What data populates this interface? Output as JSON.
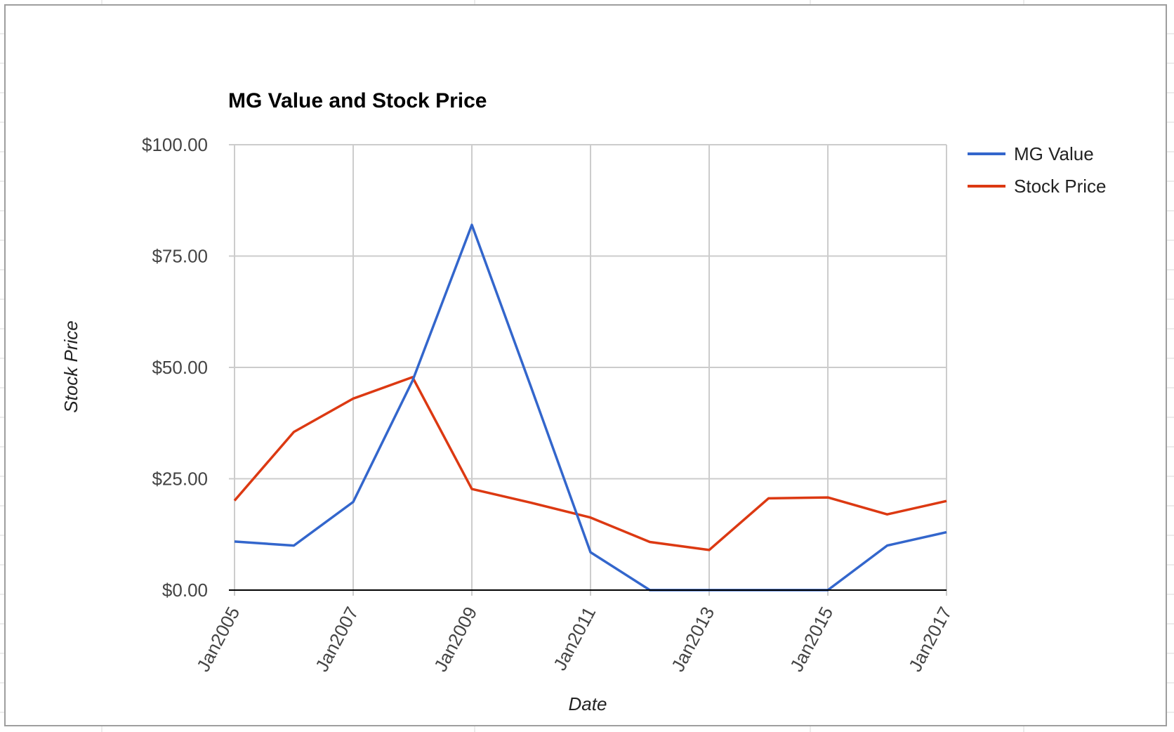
{
  "chart_data": {
    "type": "line",
    "title": "MG Value and Stock Price",
    "xlabel": "Date",
    "ylabel": "Stock Price",
    "x": [
      "2005-01",
      "2006-01",
      "2007-01",
      "2008-01",
      "2009-01",
      "2010-01",
      "2011-01",
      "2012-01",
      "2013-01",
      "2014-01",
      "2015-01",
      "2016-01",
      "2017-01"
    ],
    "x_ticks": [
      "Jan2005",
      "Jan2007",
      "Jan2009",
      "Jan2011",
      "Jan2013",
      "Jan2015",
      "Jan2017"
    ],
    "y_ticks": [
      "$0.00",
      "$25.00",
      "$50.00",
      "$75.00",
      "$100.00"
    ],
    "ylim": [
      0,
      100
    ],
    "grid": true,
    "legend_position": "right",
    "series": [
      {
        "name": "MG Value",
        "color": "#3366cc",
        "values": [
          10.9,
          10.0,
          19.8,
          47.0,
          82.0,
          45.5,
          8.5,
          0,
          0,
          0,
          0,
          10.0,
          13.0
        ]
      },
      {
        "name": "Stock Price",
        "color": "#dc3912",
        "values": [
          20.1,
          35.5,
          43.0,
          47.8,
          22.7,
          19.6,
          16.3,
          10.8,
          9.0,
          20.6,
          20.8,
          17.0,
          20.0
        ]
      }
    ]
  }
}
